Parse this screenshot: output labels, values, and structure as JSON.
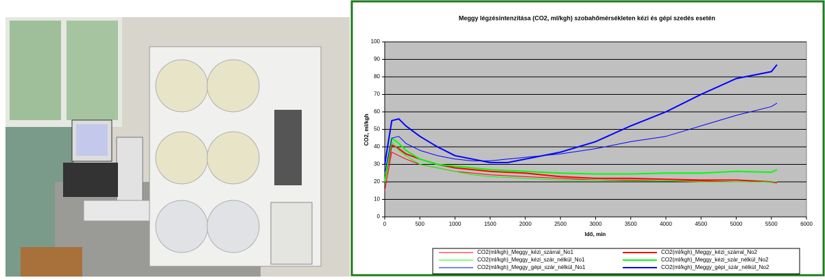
{
  "chart_data": {
    "type": "line",
    "title": "Meggy légzésintenzitása (CO2, ml/kgh) szobahőmérsékleten kézi és gépi szedés esetén",
    "x_label": "Idő, min",
    "y_label": "CO2, ml/kgh",
    "x": [
      0,
      100,
      200,
      300,
      500,
      750,
      1000,
      1250,
      1500,
      1750,
      2000,
      2500,
      3000,
      3500,
      4000,
      4500,
      5000,
      5500,
      5580
    ],
    "series": [
      {
        "name": "CO2(ml/kgh)_Meggy_kézi_szárral_No1",
        "color": "#ff0000",
        "values": [
          15,
          37,
          35,
          33,
          30,
          28,
          26,
          25,
          24,
          23.5,
          23,
          22,
          21,
          21,
          20.5,
          20.5,
          20,
          20,
          20
        ]
      },
      {
        "name": "CO2(ml/kgh)_Meggy_kézi_szárral_No2",
        "color": "#ff0000",
        "values": [
          20,
          41,
          39,
          36,
          33,
          30,
          28,
          27,
          26,
          25.5,
          25,
          23,
          22,
          22,
          21.5,
          21,
          21,
          20,
          19.5
        ]
      },
      {
        "name": "CO2(ml/kgh)_Meggy_kézi_szár_nélkül_No1",
        "color": "#00ff00",
        "values": [
          20,
          43,
          38,
          35,
          30,
          28,
          26,
          24,
          23,
          22.5,
          22,
          21,
          21,
          20.5,
          20.5,
          20,
          20,
          20,
          20
        ]
      },
      {
        "name": "CO2(ml/kgh)_Meggy_kézi_szár_nélkül_No2",
        "color": "#00ff00",
        "values": [
          20,
          45,
          42,
          38,
          33,
          30,
          29,
          28,
          27,
          26.5,
          26,
          25,
          24.5,
          24.5,
          25,
          25,
          26,
          25.5,
          27
        ]
      },
      {
        "name": "CO2(ml/kgh)_Meggy_gépi_szár_nélkül_No1",
        "color": "#0000ff",
        "values": [
          25,
          45,
          46,
          42,
          38,
          35,
          33,
          32,
          32,
          33,
          34,
          36,
          39,
          43,
          46,
          52,
          58,
          63,
          65
        ]
      },
      {
        "name": "CO2(ml/kgh)_Meggy_gépi_szár_nélkül_No2",
        "color": "#0000ff",
        "values": [
          30,
          55,
          56,
          52,
          46,
          40,
          35,
          33,
          31,
          31,
          33,
          37,
          43,
          52,
          60,
          70,
          79,
          83,
          87
        ]
      }
    ],
    "xlim": [
      0,
      6000
    ],
    "xticks": [
      0,
      500,
      1000,
      1500,
      2000,
      2500,
      3000,
      3500,
      4000,
      4500,
      5000,
      5500,
      6000
    ],
    "ylim": [
      0,
      100
    ],
    "yticks": [
      0,
      10,
      20,
      30,
      40,
      50,
      60,
      70,
      80,
      90,
      100
    ],
    "grid": true,
    "plot_background": "#c0c0c0"
  }
}
